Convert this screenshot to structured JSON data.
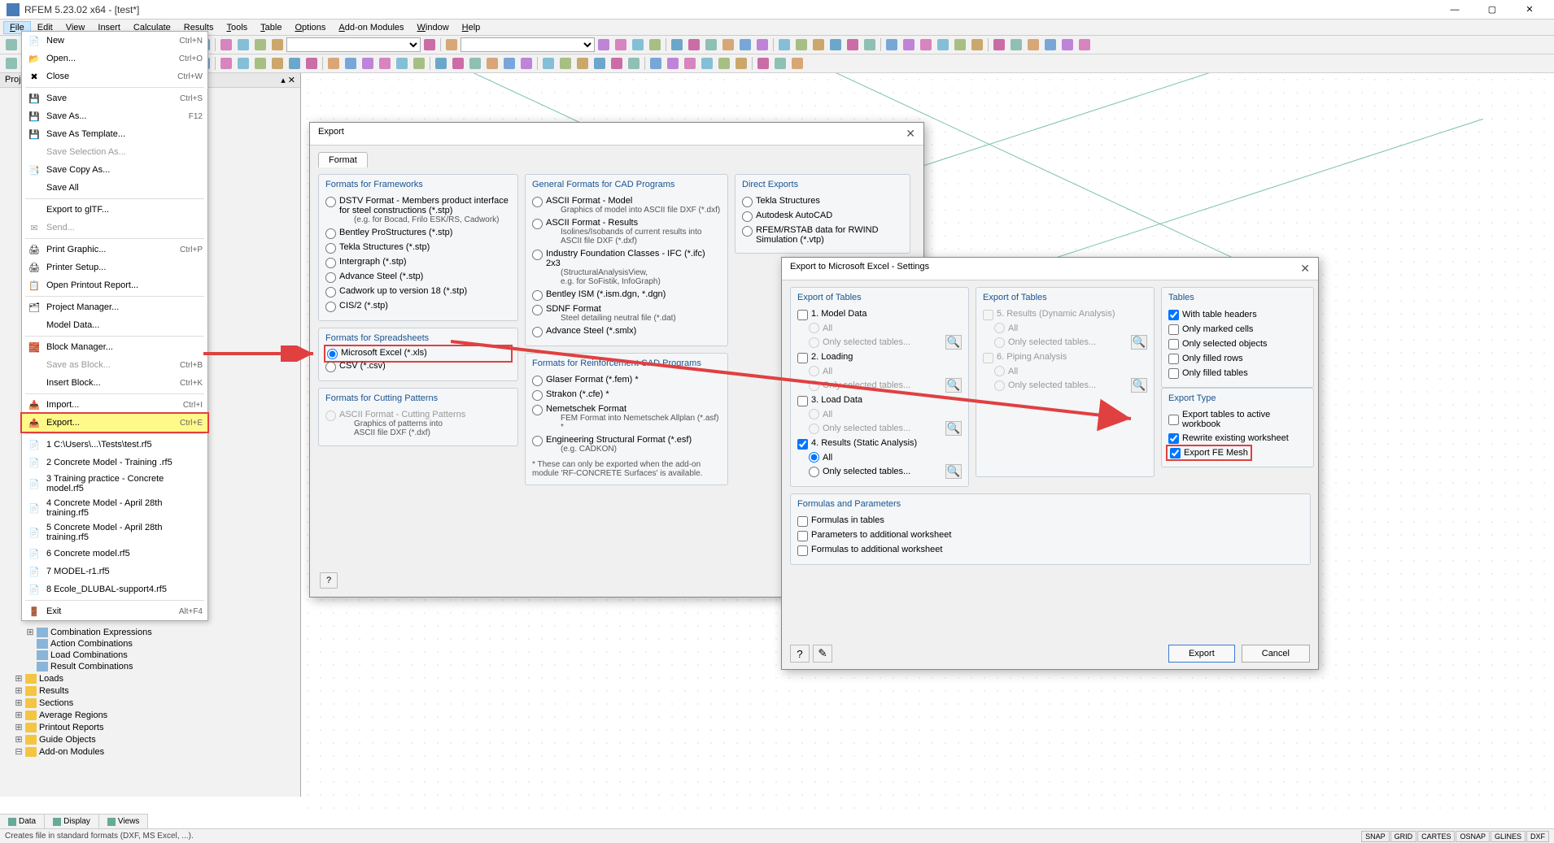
{
  "app": {
    "title": "RFEM 5.23.02 x64 - [test*]"
  },
  "menubar": [
    "File",
    "Edit",
    "View",
    "Insert",
    "Calculate",
    "Results",
    "Tools",
    "Table",
    "Options",
    "Add-on Modules",
    "Window",
    "Help"
  ],
  "file_menu": {
    "groups": [
      [
        {
          "icon": "📄",
          "label": "New",
          "shortcut": "Ctrl+N"
        },
        {
          "icon": "📂",
          "label": "Open...",
          "shortcut": "Ctrl+O"
        },
        {
          "icon": "✖",
          "label": "Close",
          "shortcut": "Ctrl+W"
        }
      ],
      [
        {
          "icon": "💾",
          "label": "Save",
          "shortcut": "Ctrl+S"
        },
        {
          "icon": "💾",
          "label": "Save As...",
          "shortcut": "F12"
        },
        {
          "icon": "💾",
          "label": "Save As Template..."
        },
        {
          "icon": "",
          "label": "Save Selection As...",
          "disabled": true
        },
        {
          "icon": "📑",
          "label": "Save Copy As..."
        },
        {
          "icon": "",
          "label": "Save All"
        }
      ],
      [
        {
          "icon": "",
          "label": "Export to glTF..."
        },
        {
          "icon": "✉",
          "label": "Send...",
          "disabled": true
        }
      ],
      [
        {
          "icon": "🖨",
          "label": "Print Graphic...",
          "shortcut": "Ctrl+P"
        },
        {
          "icon": "🖨",
          "label": "Printer Setup..."
        },
        {
          "icon": "📋",
          "label": "Open Printout Report..."
        }
      ],
      [
        {
          "icon": "🗂",
          "label": "Project Manager..."
        },
        {
          "icon": "",
          "label": "Model Data..."
        }
      ],
      [
        {
          "icon": "🧱",
          "label": "Block Manager..."
        },
        {
          "icon": "",
          "label": "Save as Block...",
          "shortcut": "Ctrl+B",
          "disabled": true
        },
        {
          "icon": "",
          "label": "Insert Block...",
          "shortcut": "Ctrl+K"
        }
      ],
      [
        {
          "icon": "📥",
          "label": "Import...",
          "shortcut": "Ctrl+I"
        },
        {
          "icon": "📤",
          "label": "Export...",
          "shortcut": "Ctrl+E",
          "highlighted": true
        }
      ],
      [
        {
          "icon": "📄",
          "label": "1 C:\\Users\\...\\Tests\\test.rf5"
        },
        {
          "icon": "📄",
          "label": "2 Concrete Model - Training .rf5"
        },
        {
          "icon": "📄",
          "label": "3 Training practice - Concrete model.rf5"
        },
        {
          "icon": "📄",
          "label": "4 Concrete Model - April 28th training.rf5"
        },
        {
          "icon": "📄",
          "label": "5 Concrete Model - April 28th training.rf5"
        },
        {
          "icon": "📄",
          "label": "6 Concrete model.rf5"
        },
        {
          "icon": "📄",
          "label": "7 MODEL-r1.rf5"
        },
        {
          "icon": "📄",
          "label": "8 Ecole_DLUBAL-support4.rf5"
        }
      ],
      [
        {
          "icon": "🚪",
          "label": "Exit",
          "shortcut": "Alt+F4"
        }
      ]
    ]
  },
  "left_panel": {
    "title": "Proje"
  },
  "tree": [
    {
      "indent": 2,
      "icon": "doc",
      "label": "Combination Expressions",
      "toggle": "+"
    },
    {
      "indent": 2,
      "icon": "doc",
      "label": "Action Combinations"
    },
    {
      "indent": 2,
      "icon": "doc",
      "label": "Load Combinations"
    },
    {
      "indent": 2,
      "icon": "doc",
      "label": "Result Combinations"
    },
    {
      "indent": 1,
      "icon": "folder",
      "label": "Loads",
      "toggle": "+"
    },
    {
      "indent": 1,
      "icon": "folder",
      "label": "Results",
      "toggle": "+"
    },
    {
      "indent": 1,
      "icon": "folder",
      "label": "Sections",
      "toggle": "+"
    },
    {
      "indent": 1,
      "icon": "folder",
      "label": "Average Regions",
      "toggle": "+"
    },
    {
      "indent": 1,
      "icon": "folder",
      "label": "Printout Reports",
      "toggle": "+"
    },
    {
      "indent": 1,
      "icon": "folder",
      "label": "Guide Objects",
      "toggle": "+"
    },
    {
      "indent": 1,
      "icon": "folder",
      "label": "Add-on Modules",
      "toggle": "-"
    }
  ],
  "bottom_tabs": [
    "Data",
    "Display",
    "Views"
  ],
  "statusbar": {
    "text": "Creates file in standard formats (DXF, MS Excel, ...).",
    "indicators": [
      "SNAP",
      "GRID",
      "CARTES",
      "OSNAP",
      "GLINES",
      "DXF"
    ]
  },
  "export_dialog": {
    "title": "Export",
    "tab": "Format",
    "col1": {
      "g1_title": "Formats for Frameworks",
      "g1_opts": [
        {
          "label": "DSTV Format - Members product interface for steel constructions (*.stp)",
          "sub": "(e.g. for Bocad, Frilo ESK/RS, Cadwork)"
        },
        {
          "label": "Bentley ProStructures (*.stp)"
        },
        {
          "label": "Tekla Structures (*.stp)"
        },
        {
          "label": "Intergraph (*.stp)"
        },
        {
          "label": "Advance Steel (*.stp)"
        },
        {
          "label": "Cadwork up to version 18 (*.stp)"
        },
        {
          "label": "CIS/2 (*.stp)"
        }
      ],
      "g2_title": "Formats for Spreadsheets",
      "g2_opts": [
        {
          "label": "Microsoft Excel (*.xls)",
          "checked": true,
          "highlighted": true
        },
        {
          "label": "CSV (*.csv)"
        }
      ],
      "g3_title": "Formats for Cutting Patterns",
      "g3_opts": [
        {
          "label": "ASCII Format - Cutting Patterns",
          "sub": "Graphics of patterns into\nASCII file DXF (*.dxf)",
          "disabled": true
        }
      ]
    },
    "col2": {
      "g1_title": "General Formats for CAD Programs",
      "g1_opts": [
        {
          "label": "ASCII Format - Model",
          "sub": "Graphics of model into ASCII file DXF (*.dxf)"
        },
        {
          "label": "ASCII Format - Results",
          "sub": "Isolines/Isobands of current results into ASCII file DXF (*.dxf)"
        },
        {
          "label": "Industry Foundation Classes - IFC (*.ifc) 2x3",
          "sub": "(StructuralAnalysisView,\ne.g. for SoFistik, InfoGraph)"
        },
        {
          "label": "Bentley ISM (*.ism.dgn, *.dgn)"
        },
        {
          "label": "SDNF Format",
          "sub": "Steel detailing neutral file (*.dat)"
        },
        {
          "label": "Advance Steel (*.smlx)"
        }
      ],
      "g2_title": "Formats for Reinforcement CAD Programs",
      "g2_opts": [
        {
          "label": "Glaser Format (*.fem)  *"
        },
        {
          "label": "Strakon (*.cfe)  *"
        },
        {
          "label": "Nemetschek Format",
          "sub": "FEM Format into Nemetschek Allplan (*.asf)  *"
        },
        {
          "label": "Engineering Structural Format (*.esf)",
          "sub": "(e.g. CADKON)"
        }
      ],
      "g2_note": "*  These can only be exported when the add-on module 'RF-CONCRETE Surfaces' is available."
    },
    "col3": {
      "g1_title": "Direct Exports",
      "g1_opts": [
        {
          "label": "Tekla Structures"
        },
        {
          "label": "Autodesk AutoCAD"
        },
        {
          "label": "RFEM/RSTAB data for RWIND Simulation (*.vtp)"
        }
      ]
    }
  },
  "settings_dialog": {
    "title": "Export to Microsoft Excel - Settings",
    "left_col_title": "Export of Tables",
    "left_items": [
      {
        "label": "1. Model Data",
        "checked": false,
        "all": false,
        "sel": false
      },
      {
        "label": "2. Loading",
        "checked": false,
        "all": false,
        "sel": false
      },
      {
        "label": "3. Load Data",
        "checked": false,
        "all": false,
        "sel": false
      },
      {
        "label": "4. Results (Static Analysis)",
        "checked": true,
        "all": true,
        "sel": false
      }
    ],
    "mid_col_title": "Export of Tables",
    "mid_items": [
      {
        "label": "5. Results (Dynamic Analysis)"
      },
      {
        "label": "6. Piping Analysis"
      }
    ],
    "sub_all": "All",
    "sub_sel": "Only selected tables...",
    "tables_title": "Tables",
    "tables_opts": [
      {
        "label": "With table headers",
        "checked": true
      },
      {
        "label": "Only marked cells"
      },
      {
        "label": "Only selected objects"
      },
      {
        "label": "Only filled rows"
      },
      {
        "label": "Only filled tables"
      }
    ],
    "export_type_title": "Export Type",
    "export_type_opts": [
      {
        "label": "Export tables to active workbook"
      },
      {
        "label": "Rewrite existing worksheet",
        "checked": true
      },
      {
        "label": "Export FE Mesh",
        "checked": true,
        "highlighted": true
      }
    ],
    "formulas_title": "Formulas and Parameters",
    "formulas_opts": [
      {
        "label": "Formulas in tables"
      },
      {
        "label": "Parameters to additional worksheet"
      },
      {
        "label": "Formulas to additional worksheet"
      }
    ],
    "btn_export": "Export",
    "btn_cancel": "Cancel"
  },
  "colors": {
    "highlight_border": "#e04040",
    "highlight_bg": "#fff98a",
    "group_title": "#1a5490"
  }
}
